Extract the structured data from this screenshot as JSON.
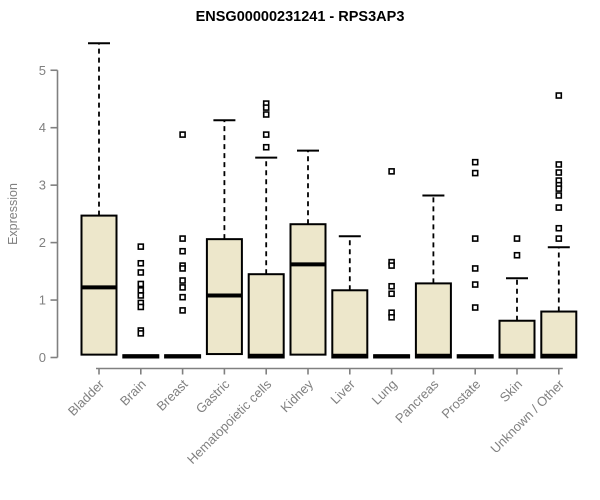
{
  "colors": {
    "box_fill": "#EDE7CB",
    "box_stroke": "#000000",
    "median": "#000000",
    "whisker": "#000000",
    "outlier_fill": "#FFFFFF",
    "outlier_stroke": "#000000",
    "axis": "#808080",
    "title_color": "#000000",
    "background": "#FFFFFF"
  },
  "chart_data": {
    "type": "boxplot",
    "title": "ENSG00000231241 - RPS3AP3",
    "ylabel": "Expression",
    "xlabel": "",
    "ylim": [
      0,
      5.6
    ],
    "yticks": [
      0,
      1,
      2,
      3,
      4,
      5
    ],
    "grid": false,
    "legend": "none",
    "categories": [
      "Bladder",
      "Brain",
      "Breast",
      "Gastric",
      "Hematopoietic cells",
      "Kidney",
      "Liver",
      "Lung",
      "Pancreas",
      "Prostate",
      "Skin",
      "Unknown / Other"
    ],
    "series": [
      {
        "name": "Bladder",
        "whisker_low": 0.05,
        "q1": 0.05,
        "median": 1.22,
        "q3": 2.47,
        "whisker_high": 5.47,
        "outliers": []
      },
      {
        "name": "Brain",
        "whisker_low": 0.0,
        "q1": 0.0,
        "median": 0.02,
        "q3": 0.04,
        "whisker_high": 0.04,
        "outliers": [
          1.93,
          1.64,
          1.48,
          1.28,
          1.17,
          1.08,
          0.95,
          0.88,
          0.47,
          0.42
        ]
      },
      {
        "name": "Breast",
        "whisker_low": 0.0,
        "q1": 0.0,
        "median": 0.02,
        "q3": 0.04,
        "whisker_high": 0.04,
        "outliers": [
          3.88,
          2.07,
          1.85,
          1.6,
          1.55,
          1.34,
          1.22,
          1.05,
          0.82
        ]
      },
      {
        "name": "Gastric",
        "whisker_low": 0.06,
        "q1": 0.06,
        "median": 1.08,
        "q3": 2.06,
        "whisker_high": 4.13,
        "outliers": []
      },
      {
        "name": "Hematopoietic cells",
        "whisker_low": 0.0,
        "q1": 0.0,
        "median": 0.03,
        "q3": 1.45,
        "whisker_high": 3.48,
        "outliers": [
          4.42,
          4.35,
          4.23,
          3.88,
          3.66
        ]
      },
      {
        "name": "Kidney",
        "whisker_low": 0.05,
        "q1": 0.05,
        "median": 1.62,
        "q3": 2.32,
        "whisker_high": 3.6,
        "outliers": []
      },
      {
        "name": "Liver",
        "whisker_low": 0.0,
        "q1": 0.0,
        "median": 0.03,
        "q3": 1.17,
        "whisker_high": 2.11,
        "outliers": []
      },
      {
        "name": "Lung",
        "whisker_low": 0.0,
        "q1": 0.0,
        "median": 0.02,
        "q3": 0.04,
        "whisker_high": 0.04,
        "outliers": [
          3.24,
          1.66,
          1.6,
          1.24,
          1.11,
          0.78,
          0.7
        ]
      },
      {
        "name": "Pancreas",
        "whisker_low": 0.0,
        "q1": 0.0,
        "median": 0.03,
        "q3": 1.29,
        "whisker_high": 2.82,
        "outliers": []
      },
      {
        "name": "Prostate",
        "whisker_low": 0.0,
        "q1": 0.0,
        "median": 0.02,
        "q3": 0.04,
        "whisker_high": 0.04,
        "outliers": [
          3.4,
          3.21,
          2.07,
          1.55,
          1.27,
          0.87
        ]
      },
      {
        "name": "Skin",
        "whisker_low": 0.0,
        "q1": 0.0,
        "median": 0.03,
        "q3": 0.64,
        "whisker_high": 1.38,
        "outliers": [
          2.07,
          1.78
        ]
      },
      {
        "name": "Unknown / Other",
        "whisker_low": 0.0,
        "q1": 0.0,
        "median": 0.03,
        "q3": 0.8,
        "whisker_high": 1.92,
        "outliers": [
          4.56,
          3.36,
          3.22,
          3.08,
          3.0,
          2.94,
          2.82,
          2.61,
          2.25,
          2.07
        ]
      }
    ]
  }
}
